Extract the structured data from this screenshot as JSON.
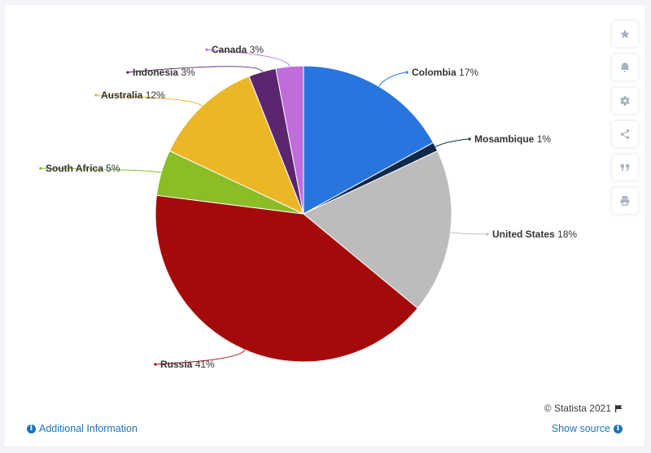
{
  "chart_data": {
    "type": "pie",
    "slices": [
      {
        "label": "Colombia",
        "value": 17,
        "value_label": "17%",
        "color": "#2876dd"
      },
      {
        "label": "Mosambique",
        "value": 1,
        "value_label": "1%",
        "color": "#0f2a4a"
      },
      {
        "label": "United States",
        "value": 18,
        "value_label": "18%",
        "color": "#bcbcbc"
      },
      {
        "label": "Russia",
        "value": 41,
        "value_label": "41%",
        "color": "#a50a0a"
      },
      {
        "label": "South Africa",
        "value": 5,
        "value_label": "5%",
        "color": "#8bbd26"
      },
      {
        "label": "Australia",
        "value": 12,
        "value_label": "12%",
        "color": "#ebb726"
      },
      {
        "label": "Indonesia",
        "value": 3,
        "value_label": "3%",
        "color": "#5b2570"
      },
      {
        "label": "Canada",
        "value": 3,
        "value_label": "3%",
        "color": "#c06ddc"
      }
    ]
  },
  "toolbar": {
    "icons": [
      "star-icon",
      "bell-icon",
      "gear-icon",
      "share-icon",
      "quote-icon",
      "print-icon"
    ]
  },
  "footer": {
    "credit": "© Statista 2021",
    "additional_info": "Additional Information",
    "show_source": "Show source"
  }
}
